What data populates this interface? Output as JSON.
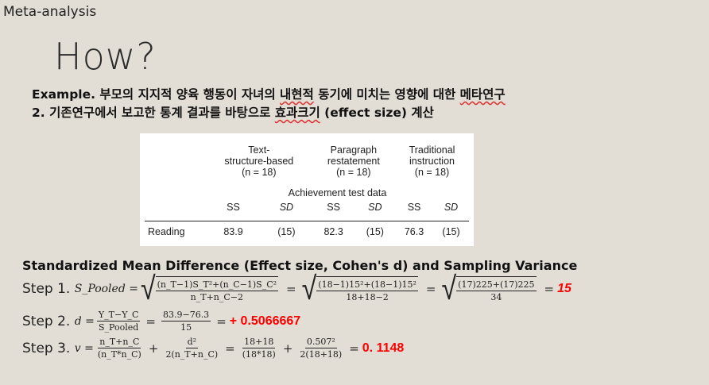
{
  "section": "Meta-analysis",
  "title": "How?",
  "line1": {
    "prefix": "Example. 부모의 지지적 양육 행동이 자녀의 ",
    "w1": "내현적",
    "mid": " 동기에 미치는 영향에 대한 ",
    "w2": "메타연구"
  },
  "line2": {
    "prefix": "2. 기존연구에서 보고한 통계 결과를 바탕으로 ",
    "w1": "효과크기",
    "suffix": " (effect size) 계산"
  },
  "table": {
    "groups": [
      {
        "l1": "Text-",
        "l2": "structure-based",
        "n": "(n = 18)"
      },
      {
        "l1": "Paragraph",
        "l2": "restatement",
        "n": "(n = 18)"
      },
      {
        "l1": "Traditional",
        "l2": "instruction",
        "n": "(n = 18)"
      }
    ],
    "subheader": "Achievement test data",
    "cols": [
      "SS",
      "SD",
      "SS",
      "SD",
      "SS",
      "SD"
    ],
    "rows": [
      {
        "label": "Reading",
        "values": [
          "83.9",
          "(15)",
          "82.3",
          "(15)",
          "76.3",
          "(15)"
        ]
      }
    ]
  },
  "header": "Standardized Mean Difference (Effect size, Cohen's d) and Sampling Variance",
  "steps": [
    {
      "label": "Step 1.",
      "lhs": "S_Pooled =",
      "f1n": "(n_T−1)S_T²+(n_C−1)S_C²",
      "f1d": "n_T+n_C−2",
      "f2n": "(18−1)15²+(18−1)15²",
      "f2d": "18+18−2",
      "f3n": "(17)225+(17)225",
      "f3d": "34",
      "result": "15"
    },
    {
      "label": "Step 2.",
      "lhs": "d =",
      "f1n": "Y_T−Y_C",
      "f1d": "S_Pooled",
      "f2n": "83.9−76.3",
      "f2d": "15",
      "result": "+ 0.5066667"
    },
    {
      "label": "Step 3.",
      "lhs": "v =",
      "f1n": "n_T+n_C",
      "f1d": "(n_T*n_C)",
      "f2n": "d²",
      "f2d": "2(n_T+n_C)",
      "f3n": "18+18",
      "f3d": "(18*18)",
      "f4n": "0.507²",
      "f4d": "2(18+18)",
      "result": "0. 1148"
    }
  ],
  "colors": {
    "background": "#e3ded5",
    "result": "#ff0000"
  }
}
